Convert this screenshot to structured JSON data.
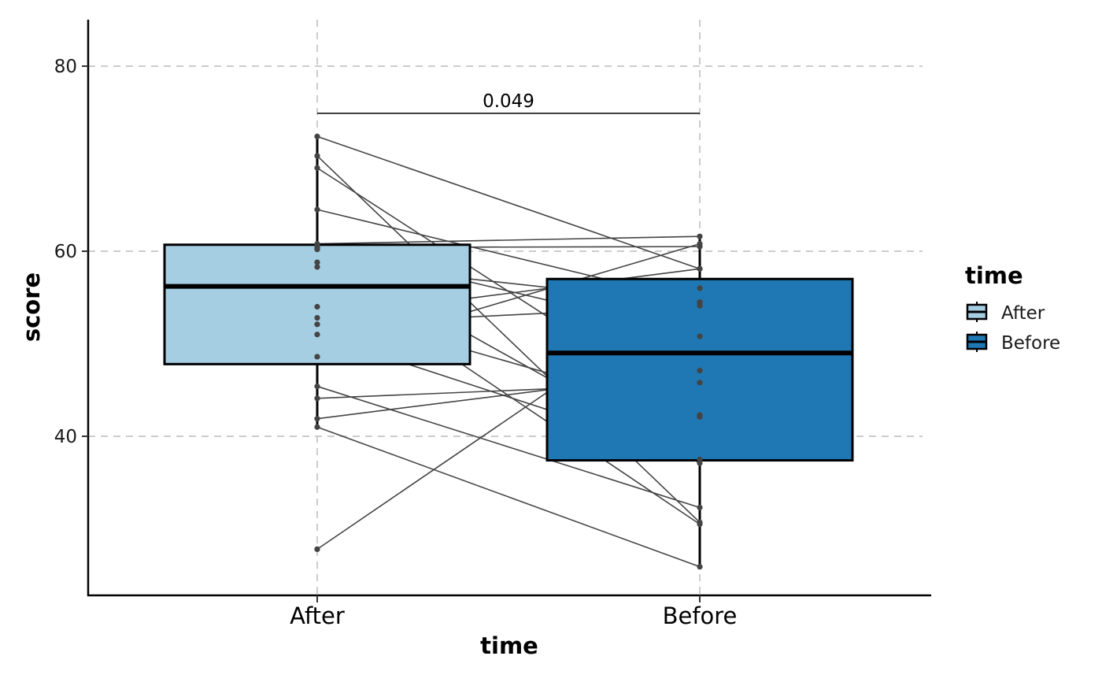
{
  "chart_data": {
    "type": "box",
    "title": "",
    "xlabel": "time",
    "ylabel": "score",
    "categories": [
      "After",
      "Before"
    ],
    "ylim": [
      23,
      85
    ],
    "y_ticks": [
      40,
      60,
      80
    ],
    "grid": "dashed",
    "boxes": [
      {
        "category": "After",
        "q1": 47.8,
        "median": 56.2,
        "q3": 60.7,
        "whisker_low": 41.0,
        "whisker_high": 72.4,
        "outliers": [
          27.8
        ],
        "color": "#a6cee3"
      },
      {
        "category": "Before",
        "q1": 37.4,
        "median": 49.0,
        "q3": 57.0,
        "whisker_low": 25.9,
        "whisker_high": 61.6,
        "outliers": [],
        "color": "#1f78b4"
      }
    ],
    "pairs": [
      [
        72.4,
        58.1
      ],
      [
        70.3,
        30.7
      ],
      [
        69.0,
        42.3
      ],
      [
        64.5,
        54.5
      ],
      [
        60.8,
        61.6
      ],
      [
        60.4,
        60.5
      ],
      [
        60.2,
        37.1
      ],
      [
        58.8,
        54.3
      ],
      [
        58.3,
        30.5
      ],
      [
        54.0,
        42.1
      ],
      [
        52.8,
        58.1
      ],
      [
        52.1,
        54.1
      ],
      [
        51.0,
        37.5
      ],
      [
        48.6,
        60.8
      ],
      [
        45.4,
        32.3
      ],
      [
        44.1,
        45.8
      ],
      [
        41.9,
        47.1
      ],
      [
        41.0,
        25.9
      ],
      [
        27.8,
        56.0
      ],
      [
        60.6,
        50.8
      ]
    ],
    "annotation": {
      "text": "0.049",
      "y": 74.9,
      "from": "After",
      "to": "Before"
    },
    "legend": {
      "title": "time",
      "placement": "right",
      "entries": [
        "After",
        "Before"
      ]
    },
    "colors": {
      "After": "#a6cee3",
      "Before": "#1f78b4",
      "points": "#444444",
      "grid": "#cccccc"
    }
  }
}
